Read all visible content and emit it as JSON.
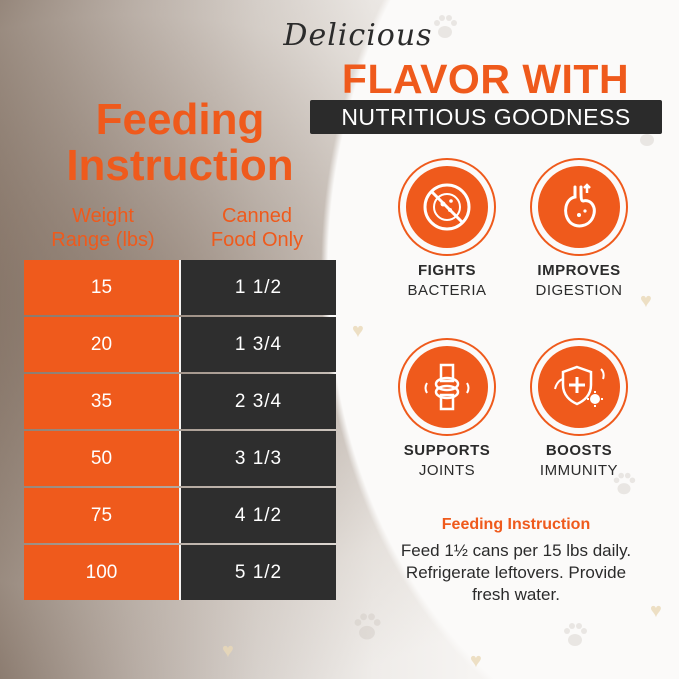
{
  "header": {
    "script_word": "Delicious",
    "headline": "FLAVOR WITH",
    "banner": "NUTRITIOUS GOODNESS"
  },
  "table": {
    "title_line1": "Feeding",
    "title_line2": "Instruction",
    "col_weight_line1": "Weight",
    "col_weight_line2": "Range (lbs)",
    "col_food_line1": "Canned",
    "col_food_line2": "Food Only",
    "rows": [
      {
        "weight": "15",
        "food": "1 1/2"
      },
      {
        "weight": "20",
        "food": "1 3/4"
      },
      {
        "weight": "35",
        "food": "2 3/4"
      },
      {
        "weight": "50",
        "food": "3 1/3"
      },
      {
        "weight": "75",
        "food": "4 1/2"
      },
      {
        "weight": "100",
        "food": "5 1/2"
      }
    ]
  },
  "benefits": [
    {
      "title": "FIGHTS",
      "sub": "BACTERIA",
      "icon": "no-bacteria-icon"
    },
    {
      "title": "IMPROVES",
      "sub": "DIGESTION",
      "icon": "stomach-icon"
    },
    {
      "title": "SUPPORTS",
      "sub": "JOINTS",
      "icon": "joint-bone-icon"
    },
    {
      "title": "BOOSTS",
      "sub": "IMMUNITY",
      "icon": "shield-virus-icon"
    }
  ],
  "note": {
    "title": "Feeding Instruction",
    "line1": "Feed 1½ cans per 15 lbs daily.",
    "line2": "Refrigerate leftovers. Provide",
    "line3": "fresh water."
  },
  "colors": {
    "accent": "#ef5a1c",
    "dark": "#2e2e2e"
  }
}
